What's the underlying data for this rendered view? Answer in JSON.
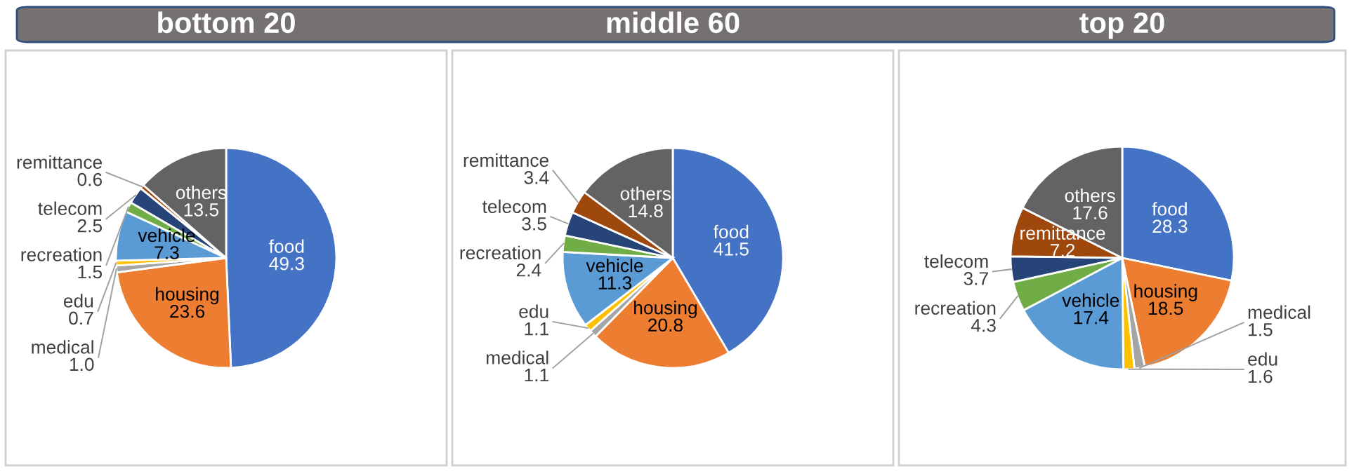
{
  "chart_data": [
    {
      "type": "pie",
      "title": "bottom 20",
      "categories": [
        "food",
        "housing",
        "medical",
        "edu",
        "vehicle",
        "recreation",
        "telecom",
        "remittance",
        "others"
      ],
      "values": [
        49.3,
        23.6,
        1.0,
        0.7,
        7.3,
        1.5,
        2.5,
        0.6,
        13.5
      ],
      "value_labels": [
        "49.3",
        "23.6",
        "1.0",
        "0.7",
        "7.3",
        "1.5",
        "2.5",
        "0.6",
        "13.5"
      ],
      "colors": [
        "#4472c4",
        "#ed7d31",
        "#a5a5a5",
        "#ffc000",
        "#5b9bd5",
        "#70ad47",
        "#264478",
        "#9e480e",
        "#636363"
      ]
    },
    {
      "type": "pie",
      "title": "middle 60",
      "categories": [
        "food",
        "housing",
        "medical",
        "edu",
        "vehicle",
        "recreation",
        "telecom",
        "remittance",
        "others"
      ],
      "values": [
        41.5,
        20.8,
        1.1,
        1.1,
        11.3,
        2.4,
        3.5,
        3.4,
        14.8
      ],
      "value_labels": [
        "41.5",
        "20.8",
        "1.1",
        "1.1",
        "11.3",
        "2.4",
        "3.5",
        "3.4",
        "14.8"
      ],
      "colors": [
        "#4472c4",
        "#ed7d31",
        "#a5a5a5",
        "#ffc000",
        "#5b9bd5",
        "#70ad47",
        "#264478",
        "#9e480e",
        "#636363"
      ]
    },
    {
      "type": "pie",
      "title": "top 20",
      "categories": [
        "food",
        "housing",
        "medical",
        "edu",
        "vehicle",
        "recreation",
        "telecom",
        "remittance",
        "others"
      ],
      "values": [
        28.3,
        18.5,
        1.5,
        1.6,
        17.4,
        4.3,
        3.7,
        7.2,
        17.6
      ],
      "value_labels": [
        "28.3",
        "18.5",
        "1.5",
        "1.6",
        "17.4",
        "4.3",
        "3.7",
        "7.2",
        "17.6"
      ],
      "colors": [
        "#4472c4",
        "#ed7d31",
        "#a5a5a5",
        "#ffc000",
        "#5b9bd5",
        "#70ad47",
        "#264478",
        "#9e480e",
        "#636363"
      ]
    }
  ]
}
